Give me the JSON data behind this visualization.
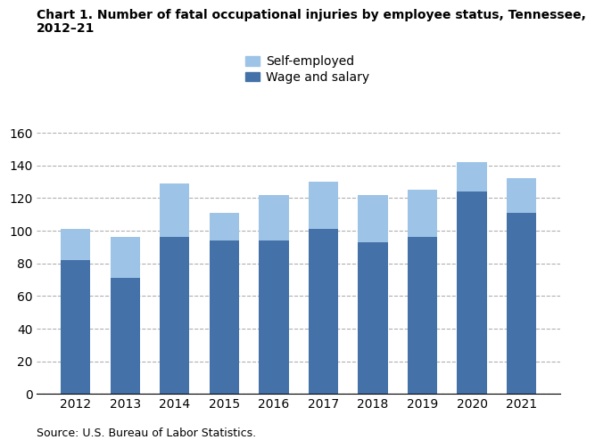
{
  "years": [
    2012,
    2013,
    2014,
    2015,
    2016,
    2017,
    2018,
    2019,
    2020,
    2021
  ],
  "wage_and_salary": [
    82,
    71,
    96,
    94,
    94,
    101,
    93,
    96,
    124,
    111
  ],
  "self_employed": [
    19,
    25,
    33,
    17,
    28,
    29,
    29,
    29,
    18,
    21
  ],
  "wage_color": "#4472a8",
  "self_color": "#9dc3e6",
  "title_line1": "Chart 1. Number of fatal occupational injuries by employee status, Tennessee,",
  "title_line2": "2012–21",
  "ylim": [
    0,
    160
  ],
  "yticks": [
    0,
    20,
    40,
    60,
    80,
    100,
    120,
    140,
    160
  ],
  "source": "Source: U.S. Bureau of Labor Statistics.",
  "legend_self": "Self-employed",
  "legend_wage": "Wage and salary",
  "background_color": "#ffffff",
  "grid_color": "#b0b0b0"
}
